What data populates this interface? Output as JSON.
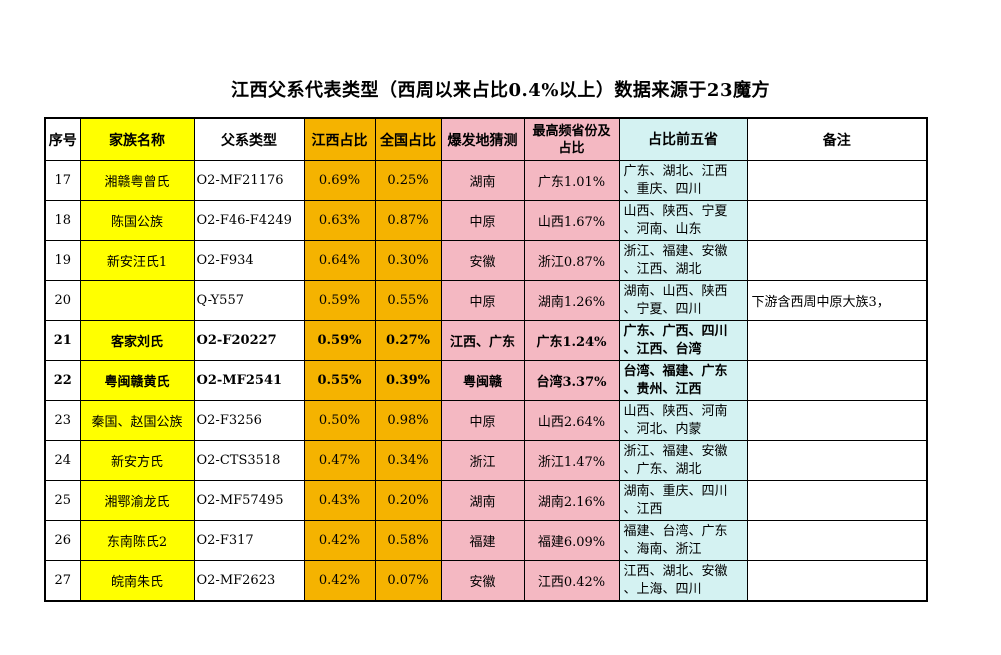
{
  "title": "江西父系代表类型（西周以来占比0.4%以上）数据来源于23魔方",
  "headers": {
    "idx": "序号",
    "name": "家族名称",
    "type": "父系类型",
    "jx": "江西占比",
    "cn": "全国占比",
    "origin": "爆发地猜测",
    "top_line1": "最高频省份及",
    "top_line2": "占比",
    "prov": "占比前五省",
    "note": "备注"
  },
  "colors": {
    "name_bg": "#ffff00",
    "ratio_bg": "#f5b300",
    "origin_bg": "#f4b8c2",
    "prov_bg": "#d4f2f2"
  },
  "rows": [
    {
      "idx": "17",
      "name": "湘赣粤曾氏",
      "type": "O2-MF21176",
      "jx": "0.69%",
      "cn": "0.25%",
      "origin": "湖南",
      "top": "广东1.01%",
      "prov1": "广东、湖北、江西",
      "prov2": "、重庆、四川",
      "note": "",
      "bold": false
    },
    {
      "idx": "18",
      "name": "陈国公族",
      "type": "O2-F46-F4249",
      "jx": "0.63%",
      "cn": "0.87%",
      "origin": "中原",
      "top": "山西1.67%",
      "prov1": "山西、陕西、宁夏",
      "prov2": "、河南、山东",
      "note": "",
      "bold": false
    },
    {
      "idx": "19",
      "name": "新安汪氏1",
      "type": "O2-F934",
      "jx": "0.64%",
      "cn": "0.30%",
      "origin": "安徽",
      "top": "浙江0.87%",
      "prov1": "浙江、福建、安徽",
      "prov2": "、江西、湖北",
      "note": "",
      "bold": false
    },
    {
      "idx": "20",
      "name": "",
      "type": "Q-Y557",
      "jx": "0.59%",
      "cn": "0.55%",
      "origin": "中原",
      "top": "湖南1.26%",
      "prov1": "湖南、山西、陕西",
      "prov2": "、宁夏、四川",
      "note": "下游含西周中原大族3，",
      "bold": false
    },
    {
      "idx": "21",
      "name": "客家刘氏",
      "type": "O2-F20227",
      "jx": "0.59%",
      "cn": "0.27%",
      "origin": "江西、广东",
      "top": "广东1.24%",
      "prov1": "广东、广西、四川",
      "prov2": "、江西、台湾",
      "note": "",
      "bold": true
    },
    {
      "idx": "22",
      "name": "粤闽赣黄氏",
      "type": "O2-MF2541",
      "jx": "0.55%",
      "cn": "0.39%",
      "origin": "粤闽赣",
      "top": "台湾3.37%",
      "prov1": "台湾、福建、广东",
      "prov2": "、贵州、江西",
      "note": "",
      "bold": true
    },
    {
      "idx": "23",
      "name": "秦国、赵国公族",
      "type": "O2-F3256",
      "jx": "0.50%",
      "cn": "0.98%",
      "origin": "中原",
      "top": "山西2.64%",
      "prov1": "山西、陕西、河南",
      "prov2": "、河北、内蒙",
      "note": "",
      "bold": false
    },
    {
      "idx": "24",
      "name": "新安方氏",
      "type": "O2-CTS3518",
      "jx": "0.47%",
      "cn": "0.34%",
      "origin": "浙江",
      "top": "浙江1.47%",
      "prov1": "浙江、福建、安徽",
      "prov2": "、广东、湖北",
      "note": "",
      "bold": false
    },
    {
      "idx": "25",
      "name": "湘鄂渝龙氏",
      "type": "O2-MF57495",
      "jx": "0.43%",
      "cn": "0.20%",
      "origin": "湖南",
      "top": "湖南2.16%",
      "prov1": "湖南、重庆、四川",
      "prov2": "、江西",
      "note": "",
      "bold": false
    },
    {
      "idx": "26",
      "name": "东南陈氏2",
      "type": "O2-F317",
      "jx": "0.42%",
      "cn": "0.58%",
      "origin": "福建",
      "top": "福建6.09%",
      "prov1": "福建、台湾、广东",
      "prov2": "、海南、浙江",
      "note": "",
      "bold": false
    },
    {
      "idx": "27",
      "name": "皖南朱氏",
      "type": "O2-MF2623",
      "jx": "0.42%",
      "cn": "0.07%",
      "origin": "安徽",
      "top": "江西0.42%",
      "prov1": "江西、湖北、安徽",
      "prov2": "、上海、四川",
      "note": "",
      "bold": false
    }
  ]
}
